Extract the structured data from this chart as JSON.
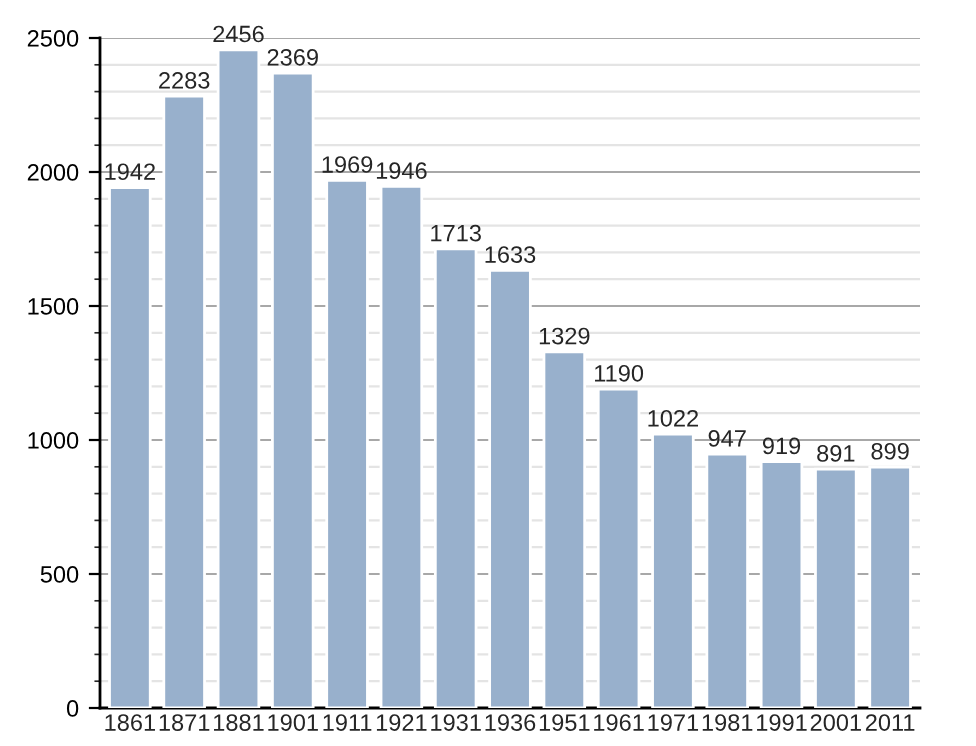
{
  "chart_data": {
    "type": "bar",
    "categories": [
      "1861",
      "1871",
      "1881",
      "1901",
      "1911",
      "1921",
      "1931",
      "1936",
      "1951",
      "1961",
      "1971",
      "1981",
      "1991",
      "2001",
      "2011"
    ],
    "values": [
      1942,
      2283,
      2456,
      2369,
      1969,
      1946,
      1713,
      1633,
      1329,
      1190,
      1022,
      947,
      919,
      891,
      899
    ],
    "color": "#98b0cc",
    "ylim": [
      0,
      2500
    ],
    "yticks": [
      0,
      500,
      1000,
      1500,
      2000,
      2500
    ],
    "grid": "y",
    "data_labels": true
  }
}
